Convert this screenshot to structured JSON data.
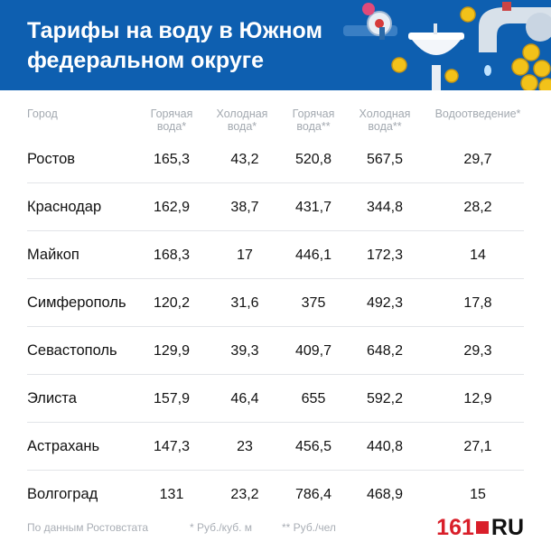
{
  "header": {
    "title": "Тарифы на воду в Южном федеральном округе"
  },
  "columns": [
    "Город",
    "Горячая вода*",
    "Холодная вода*",
    "Горячая вода**",
    "Холодная вода**",
    "Водоотведение*"
  ],
  "rows": [
    {
      "city": "Ростов",
      "hot1": "165,3",
      "cold1": "43,2",
      "hot2": "520,8",
      "cold2": "567,5",
      "drain": "29,7"
    },
    {
      "city": "Краснодар",
      "hot1": "162,9",
      "cold1": "38,7",
      "hot2": "431,7",
      "cold2": "344,8",
      "drain": "28,2"
    },
    {
      "city": "Майкоп",
      "hot1": "168,3",
      "cold1": "17",
      "hot2": "446,1",
      "cold2": "172,3",
      "drain": "14"
    },
    {
      "city": "Симферополь",
      "hot1": "120,2",
      "cold1": "31,6",
      "hot2": "375",
      "cold2": "492,3",
      "drain": "17,8"
    },
    {
      "city": "Севастополь",
      "hot1": "129,9",
      "cold1": "39,3",
      "hot2": "409,7",
      "cold2": "648,2",
      "drain": "29,3"
    },
    {
      "city": "Элиста",
      "hot1": "157,9",
      "cold1": "46,4",
      "hot2": "655",
      "cold2": "592,2",
      "drain": "12,9"
    },
    {
      "city": "Астрахань",
      "hot1": "147,3",
      "cold1": "23",
      "hot2": "456,5",
      "cold2": "440,8",
      "drain": "27,1"
    },
    {
      "city": "Волгоград",
      "hot1": "131",
      "cold1": "23,2",
      "hot2": "786,4",
      "cold2": "468,9",
      "drain": "15"
    }
  ],
  "footer": {
    "source": "По данным Ростовстата",
    "note1": "* Руб./куб. м",
    "note2": "** Руб./чел"
  },
  "logo": {
    "number": "161",
    "domain": "RU"
  },
  "colors": {
    "header_bg": "#0e5fb0",
    "accent_red": "#d91f2a",
    "muted_text": "#a3a9b0",
    "coin_gold": "#f2c21a"
  },
  "icons": [
    "water-tap-icon",
    "sink-icon",
    "coin-icon",
    "valve-icon"
  ]
}
